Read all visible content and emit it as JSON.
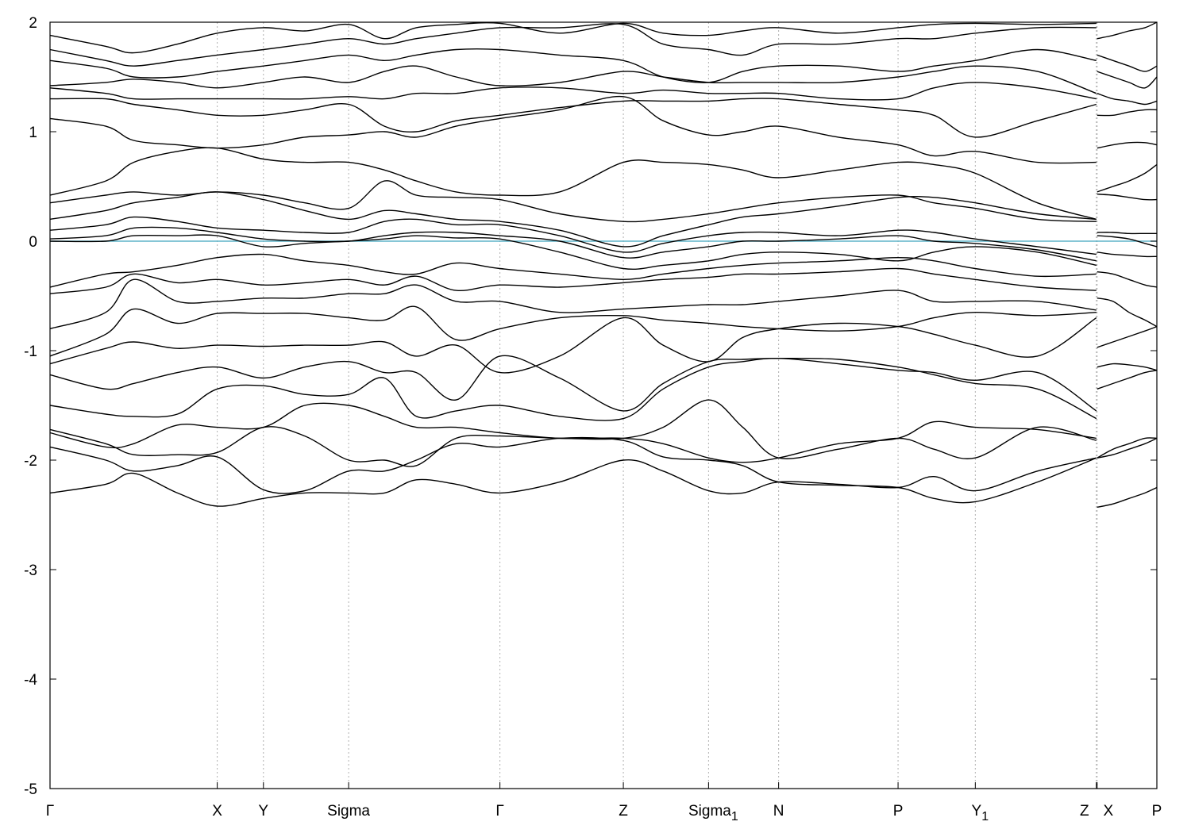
{
  "chart_data": {
    "type": "line",
    "title": "",
    "xlabel": "",
    "ylabel": "",
    "ylim": [
      -5,
      2
    ],
    "yticks": [
      2,
      1,
      0,
      -1,
      -2,
      -3,
      -4,
      -5
    ],
    "fermi_level": 0,
    "colors": {
      "bands": "#000000",
      "fermi": "#5fb4c8",
      "grid": "#b0b0b0"
    },
    "grid": "dotted vertical lines at high-symmetry points",
    "kpoints": [
      {
        "label": "Γ",
        "sub": "",
        "x": 0.0
      },
      {
        "label": "X",
        "sub": "",
        "x": 2.1
      },
      {
        "label": "Y",
        "sub": "",
        "x": 2.68
      },
      {
        "label": "Sigma",
        "sub": "",
        "x": 3.75
      },
      {
        "label": "Γ",
        "sub": "",
        "x": 5.65
      },
      {
        "label": "Z",
        "sub": "",
        "x": 7.2
      },
      {
        "label": "Sigma",
        "sub": "1",
        "x": 8.27
      },
      {
        "label": "N",
        "sub": "",
        "x": 9.15
      },
      {
        "label": "P",
        "sub": "",
        "x": 10.65
      },
      {
        "label": "Y",
        "sub": "1",
        "x": 11.62
      },
      {
        "label": "Z",
        "sub": "",
        "x": 13.14
      },
      {
        "label": "X",
        "sub": "",
        "x": 13.15
      },
      {
        "label": "P",
        "sub": "",
        "x": 13.9
      }
    ],
    "xlim": [
      0,
      13.9
    ],
    "segments": [
      {
        "x": [
          0,
          0.7,
          1.05,
          1.6,
          2.1,
          2.68,
          3.2,
          3.75,
          4.2,
          4.6,
          5.1,
          5.65,
          6.4,
          7.2,
          7.7,
          8.27,
          8.7,
          9.15,
          9.9,
          10.65,
          11.1,
          11.62,
          12.4,
          13.14
        ],
        "bands": [
          [
            -2.3,
            -2.22,
            -2.12,
            -2.3,
            -2.42,
            -2.35,
            -2.3,
            -2.3,
            -2.3,
            -2.18,
            -2.22,
            -2.3,
            -2.2,
            -2.0,
            -2.1,
            -2.28,
            -2.3,
            -2.2,
            -2.22,
            -2.25,
            -2.15,
            -2.28,
            -2.1,
            -1.98
          ],
          [
            -1.88,
            -2.0,
            -2.1,
            -2.05,
            -1.97,
            -2.27,
            -2.28,
            -2.1,
            -2.1,
            -2.0,
            -1.85,
            -1.88,
            -1.8,
            -1.82,
            -1.97,
            -2.0,
            -2.05,
            -2.2,
            -2.23,
            -2.25,
            -2.35,
            -2.38,
            -2.2,
            -1.98
          ],
          [
            -1.72,
            -1.85,
            -1.95,
            -1.95,
            -1.93,
            -1.7,
            -1.78,
            -2.0,
            -2.0,
            -2.05,
            -1.8,
            -1.78,
            -1.8,
            -1.8,
            -1.7,
            -1.45,
            -1.7,
            -1.98,
            -1.9,
            -1.8,
            -1.9,
            -1.98,
            -1.7,
            -1.82
          ],
          [
            -1.75,
            -1.88,
            -1.85,
            -1.68,
            -1.7,
            -1.7,
            -1.5,
            -1.5,
            -1.6,
            -1.7,
            -1.7,
            -1.75,
            -1.8,
            -1.8,
            -1.85,
            -1.98,
            -2.02,
            -1.98,
            -1.85,
            -1.8,
            -1.65,
            -1.7,
            -1.72,
            -1.8
          ],
          [
            -1.5,
            -1.58,
            -1.6,
            -1.58,
            -1.35,
            -1.32,
            -1.4,
            -1.4,
            -1.25,
            -1.6,
            -1.55,
            -1.5,
            -1.6,
            -1.62,
            -1.35,
            -1.15,
            -1.1,
            -1.07,
            -1.12,
            -1.18,
            -1.2,
            -1.27,
            -1.2,
            -1.55
          ],
          [
            -1.22,
            -1.35,
            -1.3,
            -1.2,
            -1.15,
            -1.25,
            -1.15,
            -1.1,
            -1.2,
            -1.2,
            -1.45,
            -1.05,
            -1.25,
            -1.55,
            -1.3,
            -1.1,
            -1.08,
            -1.07,
            -1.08,
            -1.15,
            -1.22,
            -1.3,
            -1.35,
            -1.62
          ],
          [
            -1.12,
            -0.98,
            -0.92,
            -0.98,
            -0.95,
            -0.96,
            -0.95,
            -0.95,
            -0.92,
            -1.05,
            -0.95,
            -1.2,
            -1.05,
            -0.7,
            -0.95,
            -1.1,
            -0.88,
            -0.8,
            -0.75,
            -0.78,
            -0.85,
            -0.95,
            -1.05,
            -0.7
          ],
          [
            -1.05,
            -0.85,
            -0.62,
            -0.75,
            -0.66,
            -0.66,
            -0.66,
            -0.7,
            -0.72,
            -0.6,
            -0.9,
            -0.8,
            -0.7,
            -0.68,
            -0.72,
            -0.75,
            -0.78,
            -0.8,
            -0.82,
            -0.78,
            -0.7,
            -0.65,
            -0.68,
            -0.65
          ],
          [
            -0.8,
            -0.65,
            -0.35,
            -0.55,
            -0.55,
            -0.52,
            -0.52,
            -0.48,
            -0.48,
            -0.4,
            -0.55,
            -0.55,
            -0.65,
            -0.62,
            -0.6,
            -0.58,
            -0.58,
            -0.55,
            -0.5,
            -0.45,
            -0.55,
            -0.55,
            -0.55,
            -0.63
          ],
          [
            -0.48,
            -0.42,
            -0.3,
            -0.38,
            -0.35,
            -0.4,
            -0.38,
            -0.35,
            -0.4,
            -0.32,
            -0.45,
            -0.4,
            -0.42,
            -0.38,
            -0.35,
            -0.33,
            -0.3,
            -0.3,
            -0.28,
            -0.25,
            -0.3,
            -0.35,
            -0.42,
            -0.45
          ],
          [
            -0.42,
            -0.3,
            -0.28,
            -0.22,
            -0.15,
            -0.12,
            -0.18,
            -0.22,
            -0.28,
            -0.3,
            -0.2,
            -0.25,
            -0.3,
            -0.35,
            -0.3,
            -0.25,
            -0.22,
            -0.2,
            -0.18,
            -0.15,
            -0.18,
            -0.25,
            -0.32,
            -0.3
          ],
          [
            0.0,
            0.0,
            0.05,
            0.05,
            0.05,
            -0.05,
            -0.02,
            0.0,
            0.02,
            0.05,
            0.03,
            0.02,
            -0.1,
            -0.25,
            -0.22,
            -0.18,
            -0.12,
            -0.1,
            -0.12,
            -0.18,
            -0.1,
            -0.05,
            -0.1,
            -0.22
          ],
          [
            0.02,
            0.05,
            0.12,
            0.12,
            0.08,
            0.02,
            0.0,
            0.0,
            0.05,
            0.08,
            0.08,
            0.05,
            0.0,
            -0.15,
            -0.1,
            -0.05,
            0.0,
            0.0,
            0.02,
            0.05,
            0.0,
            -0.02,
            -0.08,
            -0.18
          ],
          [
            0.1,
            0.15,
            0.22,
            0.18,
            0.12,
            0.1,
            0.08,
            0.08,
            0.18,
            0.2,
            0.15,
            0.15,
            0.05,
            -0.1,
            -0.02,
            0.05,
            0.08,
            0.08,
            0.05,
            0.1,
            0.08,
            0.02,
            -0.05,
            -0.12
          ],
          [
            0.2,
            0.28,
            0.35,
            0.4,
            0.45,
            0.38,
            0.28,
            0.2,
            0.28,
            0.25,
            0.2,
            0.18,
            0.1,
            -0.05,
            0.05,
            0.15,
            0.22,
            0.25,
            0.32,
            0.4,
            0.4,
            0.35,
            0.25,
            0.2
          ],
          [
            0.35,
            0.42,
            0.45,
            0.42,
            0.45,
            0.42,
            0.35,
            0.3,
            0.55,
            0.42,
            0.4,
            0.38,
            0.25,
            0.18,
            0.2,
            0.25,
            0.3,
            0.35,
            0.4,
            0.42,
            0.35,
            0.3,
            0.2,
            0.18
          ],
          [
            0.42,
            0.55,
            0.72,
            0.82,
            0.85,
            0.75,
            0.72,
            0.72,
            0.65,
            0.55,
            0.45,
            0.42,
            0.45,
            0.72,
            0.72,
            0.7,
            0.65,
            0.58,
            0.65,
            0.72,
            0.7,
            0.62,
            0.35,
            0.2
          ],
          [
            1.12,
            1.05,
            0.92,
            0.88,
            0.85,
            0.88,
            0.95,
            0.97,
            1.0,
            0.95,
            1.05,
            1.12,
            1.2,
            1.32,
            1.1,
            0.97,
            1.0,
            1.05,
            0.95,
            0.88,
            0.78,
            0.82,
            0.72,
            0.72
          ],
          [
            1.3,
            1.3,
            1.25,
            1.2,
            1.15,
            1.15,
            1.2,
            1.25,
            1.05,
            1.0,
            1.1,
            1.15,
            1.22,
            1.28,
            1.28,
            1.28,
            1.3,
            1.3,
            1.25,
            1.2,
            1.15,
            0.95,
            1.1,
            1.25
          ],
          [
            1.4,
            1.35,
            1.3,
            1.3,
            1.3,
            1.3,
            1.3,
            1.32,
            1.3,
            1.35,
            1.35,
            1.4,
            1.4,
            1.35,
            1.38,
            1.35,
            1.35,
            1.35,
            1.3,
            1.3,
            1.4,
            1.45,
            1.4,
            1.3
          ],
          [
            1.42,
            1.45,
            1.48,
            1.45,
            1.4,
            1.45,
            1.5,
            1.45,
            1.55,
            1.6,
            1.5,
            1.42,
            1.45,
            1.55,
            1.5,
            1.45,
            1.45,
            1.45,
            1.45,
            1.5,
            1.55,
            1.6,
            1.55,
            1.35
          ],
          [
            1.65,
            1.58,
            1.5,
            1.5,
            1.55,
            1.6,
            1.65,
            1.7,
            1.65,
            1.7,
            1.75,
            1.75,
            1.7,
            1.65,
            1.5,
            1.45,
            1.55,
            1.6,
            1.6,
            1.55,
            1.6,
            1.65,
            1.75,
            1.65
          ],
          [
            1.75,
            1.65,
            1.6,
            1.65,
            1.7,
            1.75,
            1.8,
            1.85,
            1.8,
            1.85,
            1.9,
            1.95,
            1.95,
            1.98,
            1.8,
            1.75,
            1.7,
            1.8,
            1.8,
            1.85,
            1.85,
            1.9,
            1.95,
            1.95
          ],
          [
            1.88,
            1.78,
            1.72,
            1.8,
            1.9,
            1.95,
            1.92,
            1.98,
            1.85,
            1.95,
            1.98,
            1.99,
            1.9,
            1.99,
            1.9,
            1.88,
            1.92,
            1.95,
            1.9,
            1.95,
            1.98,
            1.99,
            1.98,
            1.99
          ]
        ]
      },
      {
        "x": [
          13.15,
          13.35,
          13.55,
          13.75,
          13.9
        ],
        "bands": [
          [
            -2.43,
            -2.4,
            -2.35,
            -2.3,
            -2.25
          ],
          [
            -1.98,
            -1.95,
            -1.9,
            -1.85,
            -1.8
          ],
          [
            -1.98,
            -1.9,
            -1.85,
            -1.8,
            -1.8
          ],
          [
            -1.35,
            -1.3,
            -1.25,
            -1.2,
            -1.18
          ],
          [
            -1.15,
            -1.12,
            -1.13,
            -1.15,
            -1.18
          ],
          [
            -0.97,
            -0.92,
            -0.87,
            -0.82,
            -0.78
          ],
          [
            -0.52,
            -0.55,
            -0.65,
            -0.72,
            -0.78
          ],
          [
            -0.28,
            -0.3,
            -0.35,
            -0.4,
            -0.42
          ],
          [
            -0.1,
            -0.12,
            -0.13,
            -0.14,
            -0.14
          ],
          [
            0.05,
            0.04,
            0.02,
            -0.02,
            -0.05
          ],
          [
            0.08,
            0.08,
            0.07,
            0.07,
            0.07
          ],
          [
            0.43,
            0.42,
            0.4,
            0.38,
            0.38
          ],
          [
            0.45,
            0.5,
            0.55,
            0.62,
            0.7
          ],
          [
            0.85,
            0.88,
            0.9,
            0.9,
            0.88
          ],
          [
            1.15,
            1.15,
            1.18,
            1.2,
            1.2
          ],
          [
            1.35,
            1.3,
            1.28,
            1.25,
            1.28
          ],
          [
            1.55,
            1.5,
            1.45,
            1.4,
            1.5
          ],
          [
            1.7,
            1.65,
            1.6,
            1.55,
            1.6
          ],
          [
            1.85,
            1.88,
            1.92,
            1.95,
            2.0
          ]
        ]
      }
    ]
  }
}
